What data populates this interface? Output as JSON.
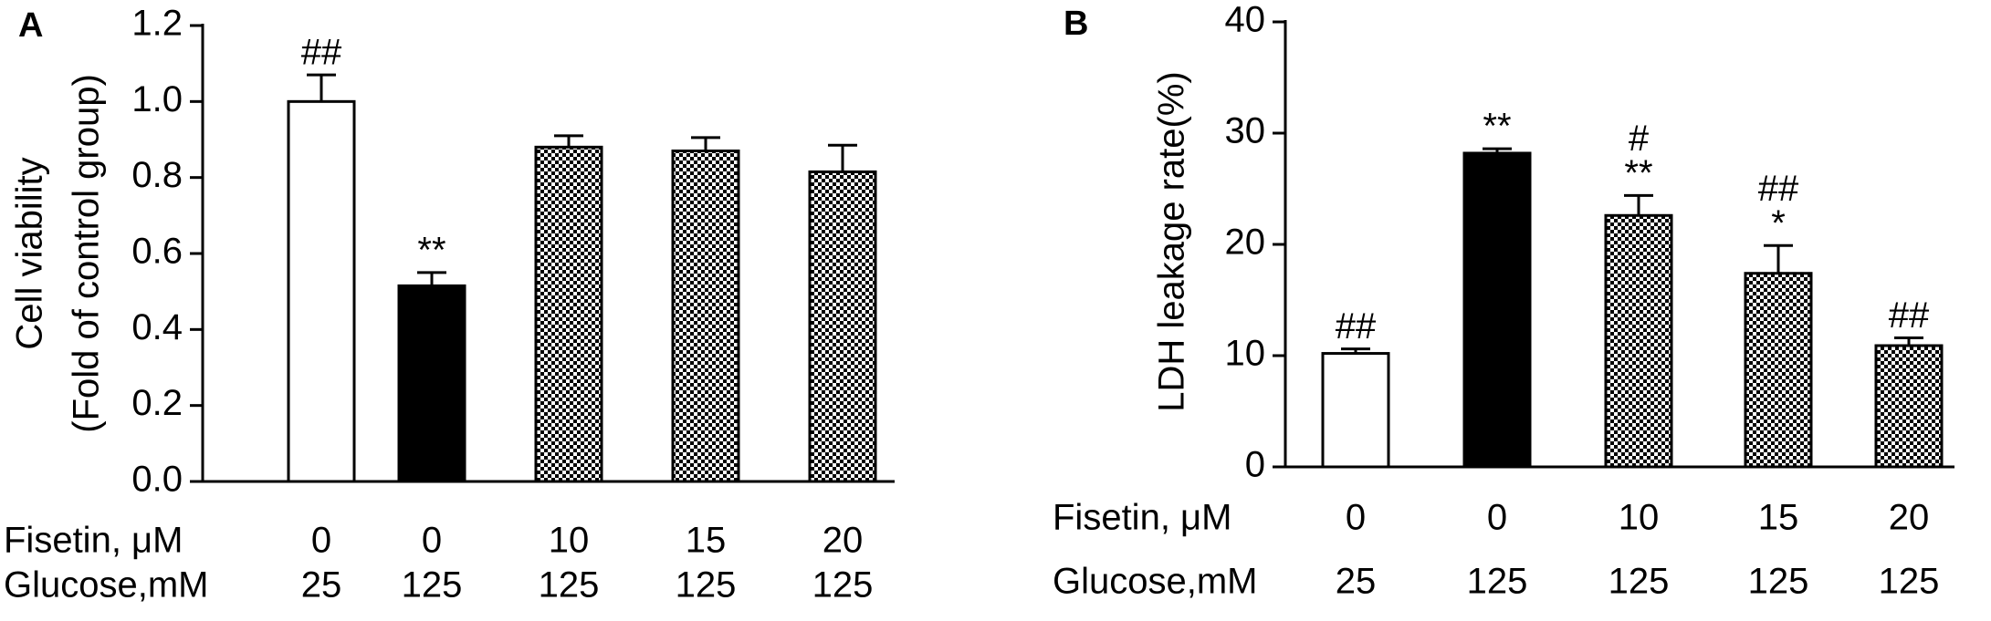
{
  "chart_data": [
    {
      "type": "bar",
      "panel": "A",
      "ylabel": [
        "Cell viability",
        "(Fold of control group)"
      ],
      "category_rows": [
        {
          "label": "Fisetin, μM",
          "labels": [
            "0",
            "0",
            "10",
            "15",
            "20"
          ]
        },
        {
          "label": "Glucose,mM",
          "labels": [
            "25",
            "125",
            "125",
            "125",
            "125"
          ]
        }
      ],
      "values": [
        1.0,
        0.515,
        0.88,
        0.87,
        0.815
      ],
      "errors": [
        0.07,
        0.035,
        0.03,
        0.035,
        0.07
      ],
      "fills": [
        "white",
        "black",
        "checker",
        "checker",
        "checker"
      ],
      "annotations": [
        [
          "##"
        ],
        [
          "**"
        ],
        [],
        [],
        []
      ],
      "ylim": [
        0,
        1.2
      ],
      "yticks": [
        {
          "value": 0,
          "label": "0.0"
        },
        0.2,
        0.4,
        0.6,
        0.8,
        {
          "value": 1,
          "label": "1.0"
        },
        1.2
      ]
    },
    {
      "type": "bar",
      "panel": "B",
      "ylabel": [
        "LDH leakage rate(%)"
      ],
      "category_rows": [
        {
          "label": "Fisetin, μM",
          "labels": [
            "0",
            "0",
            "10",
            "15",
            "20"
          ]
        },
        {
          "label": "Glucose,mM",
          "labels": [
            "25",
            "125",
            "125",
            "125",
            "125"
          ]
        }
      ],
      "values": [
        10.2,
        28.2,
        22.6,
        17.4,
        10.9
      ],
      "errors": [
        0.4,
        0.4,
        1.8,
        2.5,
        0.7
      ],
      "fills": [
        "white",
        "black",
        "checker",
        "checker",
        "checker"
      ],
      "annotations": [
        [
          "##"
        ],
        [
          "**"
        ],
        [
          "#",
          "**"
        ],
        [
          "##",
          "*"
        ],
        [
          "##"
        ]
      ],
      "ylim": [
        0,
        40
      ],
      "yticks": [
        0,
        10,
        20,
        30,
        40
      ]
    }
  ]
}
